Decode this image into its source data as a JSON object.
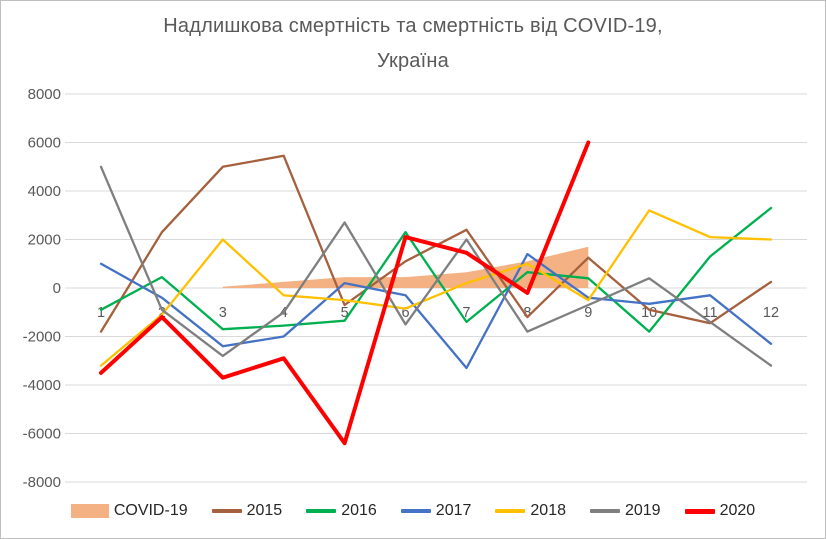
{
  "title": {
    "line1": "Надлишкова смертність та смертність від COVID-19,",
    "line2": "Україна"
  },
  "chart_data": {
    "type": "line",
    "title": "Надлишкова смертність та смертність від COVID-19, Україна",
    "xlabel": "",
    "ylabel": "",
    "categories": [
      1,
      2,
      3,
      4,
      5,
      6,
      7,
      8,
      9,
      10,
      11,
      12
    ],
    "ylim": [
      -8000,
      8000
    ],
    "yticks": [
      8000,
      6000,
      4000,
      2000,
      0,
      -2000,
      -4000,
      -6000,
      -8000
    ],
    "grid": "horizontal",
    "gridline_color": "#d9d9d9",
    "axis_label_color": "#595959",
    "legend_position": "bottom",
    "series": [
      {
        "name": "COVID-19",
        "type": "area",
        "color": "#F4B183",
        "weight": "normal",
        "values": [
          null,
          null,
          50,
          250,
          450,
          450,
          650,
          1100,
          1700,
          null,
          null,
          null
        ]
      },
      {
        "name": "2015",
        "type": "line",
        "color": "#A5603D",
        "weight": "normal",
        "values": [
          -1800,
          2300,
          5000,
          5450,
          -700,
          1100,
          2400,
          -1200,
          1250,
          -900,
          -1450,
          250
        ]
      },
      {
        "name": "2016",
        "type": "line",
        "color": "#00B050",
        "weight": "normal",
        "values": [
          -900,
          450,
          -1700,
          -1550,
          -1350,
          2300,
          -1400,
          650,
          400,
          -1800,
          1300,
          3300
        ]
      },
      {
        "name": "2017",
        "type": "line",
        "color": "#4472C4",
        "weight": "normal",
        "values": [
          1000,
          -400,
          -2400,
          -2000,
          200,
          -300,
          -3300,
          1400,
          -400,
          -650,
          -300,
          -2300
        ]
      },
      {
        "name": "2018",
        "type": "line",
        "color": "#FFC000",
        "weight": "normal",
        "values": [
          -3200,
          -1100,
          2000,
          -300,
          -500,
          -850,
          200,
          1000,
          -500,
          3200,
          2100,
          2000
        ]
      },
      {
        "name": "2019",
        "type": "line",
        "color": "#7F7F7F",
        "weight": "normal",
        "values": [
          5000,
          -900,
          -2800,
          -1000,
          2700,
          -1500,
          2000,
          -1800,
          -700,
          400,
          -1400,
          -3200
        ]
      },
      {
        "name": "2020",
        "type": "line",
        "color": "#FF0000",
        "weight": "bold",
        "values": [
          -3500,
          -1200,
          -3700,
          -2900,
          -6400,
          2100,
          1450,
          -200,
          6000,
          null,
          null,
          null
        ]
      }
    ]
  }
}
